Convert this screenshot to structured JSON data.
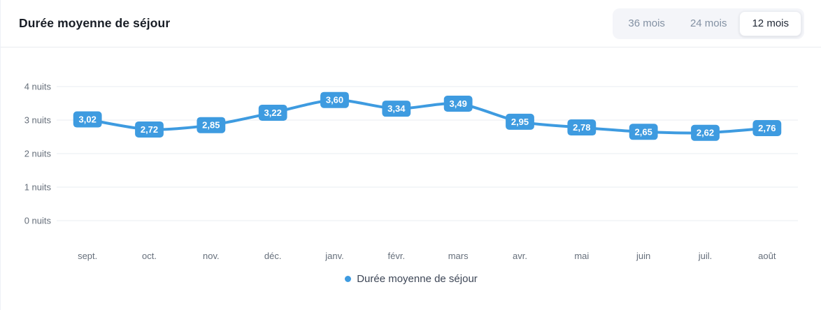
{
  "header": {
    "title": "Durée moyenne de séjour",
    "range_buttons": [
      {
        "label": "36 mois",
        "selected": false
      },
      {
        "label": "24 mois",
        "selected": false
      },
      {
        "label": "12 mois",
        "selected": true
      }
    ]
  },
  "chart_data": {
    "type": "line",
    "title": "Durée moyenne de séjour",
    "categories": [
      "sept.",
      "oct.",
      "nov.",
      "déc.",
      "janv.",
      "févr.",
      "mars",
      "avr.",
      "mai",
      "juin",
      "juil.",
      "août"
    ],
    "series": [
      {
        "name": "Durée moyenne de séjour",
        "values": [
          3.02,
          2.72,
          2.85,
          3.22,
          3.6,
          3.34,
          3.49,
          2.95,
          2.78,
          2.65,
          2.62,
          2.76
        ]
      }
    ],
    "point_labels": [
      "3,02",
      "2,72",
      "2,85",
      "3,22",
      "3,60",
      "3,34",
      "3,49",
      "2,95",
      "2,78",
      "2,65",
      "2,62",
      "2,76"
    ],
    "yticks": [
      0,
      1,
      2,
      3,
      4
    ],
    "ytick_labels": [
      "0 nuits",
      "1 nuits",
      "2 nuits",
      "3 nuits",
      "4 nuits"
    ],
    "ylim": [
      0,
      4
    ],
    "grid": true,
    "legend_position": "bottom",
    "legend_entries": [
      "Durée moyenne de séjour"
    ]
  },
  "legend": {
    "label": "Durée moyenne de séjour"
  },
  "colors": {
    "accent": "#3e9be0",
    "grid_line": "#eaedf2",
    "tick_text": "#666f7b",
    "point_label_text": "#ffffff"
  }
}
